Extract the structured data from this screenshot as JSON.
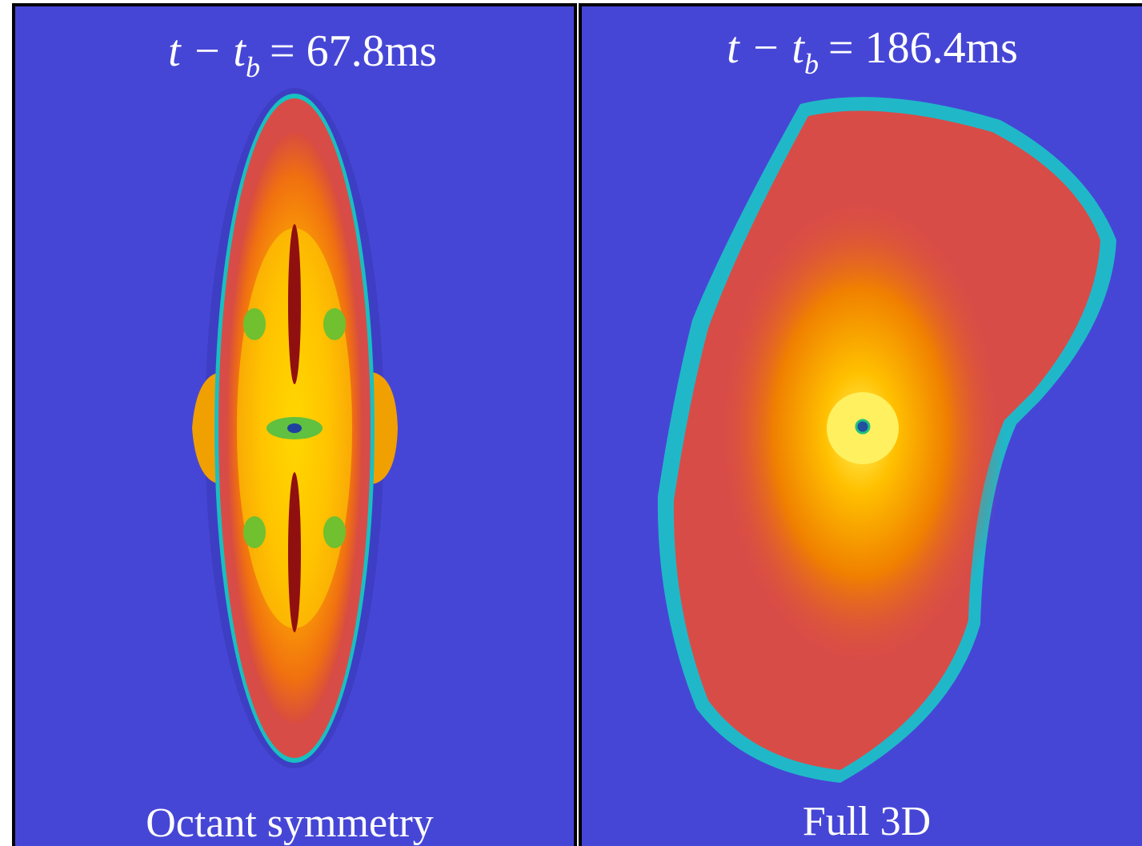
{
  "panels": [
    {
      "title": {
        "lhs": "t − t",
        "sub": "b",
        "rhs": "= 67.8ms"
      },
      "caption": "Octant symmetry"
    },
    {
      "title": {
        "lhs": "t − t",
        "sub": "b",
        "rhs": "= 186.4ms"
      },
      "caption": "Full 3D"
    }
  ]
}
